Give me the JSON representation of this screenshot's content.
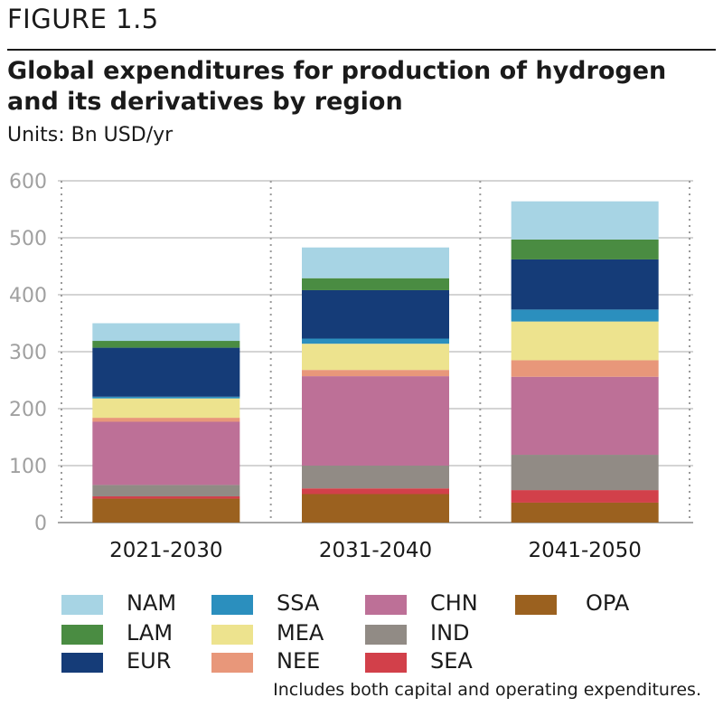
{
  "figure_label": "FIGURE 1.5",
  "title": "Global expenditures for production of hydrogen and its derivatives by region",
  "units": "Units: Bn USD/yr",
  "note": "Includes both capital and operating expenditures.",
  "colors": {
    "OPA": "#9b611f",
    "SEA": "#d2404a",
    "IND": "#918b85",
    "CHN": "#bd7097",
    "NEE": "#e8977a",
    "MEA": "#ede38e",
    "SSA": "#2b8fbe",
    "EUR": "#153c78",
    "LAM": "#4a8c42",
    "NAM": "#a7d4e4"
  },
  "chart_data": {
    "type": "bar",
    "stacked": true,
    "categories": [
      "2021-2030",
      "2031-2040",
      "2041-2050"
    ],
    "ylim": [
      0,
      600
    ],
    "yticks": [
      "0",
      "100",
      "200",
      "300",
      "400",
      "500",
      "600"
    ],
    "grid": true,
    "legend_position": "bottom",
    "series": [
      {
        "name": "OPA",
        "values": [
          42,
          50,
          35
        ]
      },
      {
        "name": "SEA",
        "values": [
          4,
          10,
          22
        ]
      },
      {
        "name": "IND",
        "values": [
          20,
          40,
          62
        ]
      },
      {
        "name": "CHN",
        "values": [
          111,
          157,
          137
        ]
      },
      {
        "name": "NEE",
        "values": [
          7,
          11,
          29
        ]
      },
      {
        "name": "MEA",
        "values": [
          34,
          46,
          68
        ]
      },
      {
        "name": "SSA",
        "values": [
          3,
          9,
          21
        ]
      },
      {
        "name": "EUR",
        "values": [
          86,
          85,
          88
        ]
      },
      {
        "name": "LAM",
        "values": [
          12,
          21,
          35
        ]
      },
      {
        "name": "NAM",
        "values": [
          31,
          54,
          67
        ]
      }
    ]
  },
  "legend": {
    "columns": [
      [
        "NAM",
        "LAM",
        "EUR"
      ],
      [
        "SSA",
        "MEA",
        "NEE"
      ],
      [
        "CHN",
        "IND",
        "SEA"
      ],
      [
        "OPA"
      ]
    ]
  }
}
